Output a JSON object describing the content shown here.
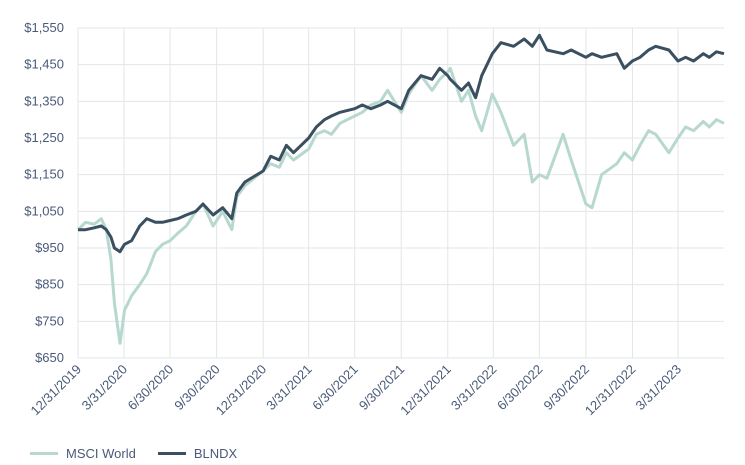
{
  "chart_data": {
    "type": "line",
    "title": "",
    "xlabel": "",
    "ylabel": "",
    "ylim": [
      650,
      1550
    ],
    "y_ticks": [
      "$650",
      "$750",
      "$850",
      "$950",
      "$1,050",
      "$1,150",
      "$1,250",
      "$1,350",
      "$1,450",
      "$1,550"
    ],
    "x_ticks": [
      "12/31/2019",
      "3/31/2020",
      "6/30/2020",
      "9/30/2020",
      "12/31/2020",
      "3/31/2021",
      "6/30/2021",
      "9/30/2021",
      "12/31/2021",
      "3/31/2022",
      "6/30/2022",
      "9/30/2022",
      "12/31/2022",
      "3/31/2023"
    ],
    "grid": true,
    "legend_position": "bottom-left",
    "series": [
      {
        "name": "MSCI World",
        "color": "#b7d8ce",
        "points": [
          [
            "2019-12-31",
            1000
          ],
          [
            "2020-01-15",
            1020
          ],
          [
            "2020-02-01",
            1015
          ],
          [
            "2020-02-15",
            1030
          ],
          [
            "2020-02-25",
            1000
          ],
          [
            "2020-03-05",
            920
          ],
          [
            "2020-03-12",
            800
          ],
          [
            "2020-03-23",
            690
          ],
          [
            "2020-04-01",
            780
          ],
          [
            "2020-04-15",
            820
          ],
          [
            "2020-05-01",
            850
          ],
          [
            "2020-05-15",
            880
          ],
          [
            "2020-06-01",
            940
          ],
          [
            "2020-06-15",
            960
          ],
          [
            "2020-06-30",
            970
          ],
          [
            "2020-07-15",
            990
          ],
          [
            "2020-08-01",
            1010
          ],
          [
            "2020-08-20",
            1050
          ],
          [
            "2020-09-03",
            1070
          ],
          [
            "2020-09-23",
            1010
          ],
          [
            "2020-10-12",
            1050
          ],
          [
            "2020-10-30",
            1000
          ],
          [
            "2020-11-09",
            1090
          ],
          [
            "2020-11-25",
            1120
          ],
          [
            "2020-12-31",
            1160
          ],
          [
            "2021-01-15",
            1180
          ],
          [
            "2021-02-01",
            1170
          ],
          [
            "2021-02-15",
            1210
          ],
          [
            "2021-03-01",
            1190
          ],
          [
            "2021-03-31",
            1220
          ],
          [
            "2021-04-15",
            1260
          ],
          [
            "2021-05-01",
            1270
          ],
          [
            "2021-05-15",
            1260
          ],
          [
            "2021-06-01",
            1290
          ],
          [
            "2021-06-30",
            1310
          ],
          [
            "2021-07-15",
            1320
          ],
          [
            "2021-08-01",
            1340
          ],
          [
            "2021-08-20",
            1350
          ],
          [
            "2021-09-03",
            1380
          ],
          [
            "2021-09-30",
            1320
          ],
          [
            "2021-10-15",
            1370
          ],
          [
            "2021-11-08",
            1420
          ],
          [
            "2021-11-30",
            1380
          ],
          [
            "2021-12-15",
            1410
          ],
          [
            "2021-12-31",
            1430
          ],
          [
            "2022-01-05",
            1440
          ],
          [
            "2022-01-27",
            1350
          ],
          [
            "2022-02-10",
            1380
          ],
          [
            "2022-02-24",
            1310
          ],
          [
            "2022-03-08",
            1270
          ],
          [
            "2022-03-29",
            1370
          ],
          [
            "2022-04-15",
            1320
          ],
          [
            "2022-05-10",
            1230
          ],
          [
            "2022-05-31",
            1260
          ],
          [
            "2022-06-16",
            1130
          ],
          [
            "2022-06-30",
            1150
          ],
          [
            "2022-07-15",
            1140
          ],
          [
            "2022-08-16",
            1260
          ],
          [
            "2022-09-01",
            1190
          ],
          [
            "2022-09-30",
            1070
          ],
          [
            "2022-10-12",
            1060
          ],
          [
            "2022-10-31",
            1150
          ],
          [
            "2022-11-30",
            1180
          ],
          [
            "2022-12-15",
            1210
          ],
          [
            "2022-12-31",
            1190
          ],
          [
            "2023-01-15",
            1230
          ],
          [
            "2023-02-01",
            1270
          ],
          [
            "2023-02-15",
            1260
          ],
          [
            "2023-03-13",
            1210
          ],
          [
            "2023-03-31",
            1250
          ],
          [
            "2023-04-15",
            1280
          ],
          [
            "2023-05-01",
            1270
          ],
          [
            "2023-05-20",
            1295
          ],
          [
            "2023-06-01",
            1280
          ],
          [
            "2023-06-15",
            1300
          ],
          [
            "2023-06-30",
            1290
          ]
        ]
      },
      {
        "name": "BLNDX",
        "color": "#3a4f60",
        "points": [
          [
            "2019-12-31",
            1000
          ],
          [
            "2020-01-15",
            1000
          ],
          [
            "2020-02-01",
            1005
          ],
          [
            "2020-02-15",
            1010
          ],
          [
            "2020-02-25",
            1000
          ],
          [
            "2020-03-05",
            980
          ],
          [
            "2020-03-12",
            950
          ],
          [
            "2020-03-23",
            940
          ],
          [
            "2020-04-01",
            960
          ],
          [
            "2020-04-15",
            970
          ],
          [
            "2020-05-01",
            1010
          ],
          [
            "2020-05-15",
            1030
          ],
          [
            "2020-06-01",
            1020
          ],
          [
            "2020-06-15",
            1020
          ],
          [
            "2020-06-30",
            1025
          ],
          [
            "2020-07-15",
            1030
          ],
          [
            "2020-08-01",
            1040
          ],
          [
            "2020-08-20",
            1050
          ],
          [
            "2020-09-03",
            1070
          ],
          [
            "2020-09-23",
            1040
          ],
          [
            "2020-10-12",
            1060
          ],
          [
            "2020-10-30",
            1030
          ],
          [
            "2020-11-09",
            1100
          ],
          [
            "2020-11-25",
            1130
          ],
          [
            "2020-12-31",
            1160
          ],
          [
            "2021-01-15",
            1200
          ],
          [
            "2021-02-01",
            1190
          ],
          [
            "2021-02-15",
            1230
          ],
          [
            "2021-03-01",
            1210
          ],
          [
            "2021-03-31",
            1250
          ],
          [
            "2021-04-15",
            1280
          ],
          [
            "2021-05-01",
            1300
          ],
          [
            "2021-05-15",
            1310
          ],
          [
            "2021-06-01",
            1320
          ],
          [
            "2021-06-30",
            1330
          ],
          [
            "2021-07-15",
            1340
          ],
          [
            "2021-08-01",
            1330
          ],
          [
            "2021-08-20",
            1340
          ],
          [
            "2021-09-03",
            1350
          ],
          [
            "2021-09-30",
            1330
          ],
          [
            "2021-10-15",
            1380
          ],
          [
            "2021-11-08",
            1420
          ],
          [
            "2021-11-30",
            1410
          ],
          [
            "2021-12-15",
            1440
          ],
          [
            "2021-12-31",
            1420
          ],
          [
            "2022-01-05",
            1410
          ],
          [
            "2022-01-27",
            1380
          ],
          [
            "2022-02-10",
            1400
          ],
          [
            "2022-02-24",
            1360
          ],
          [
            "2022-03-08",
            1420
          ],
          [
            "2022-03-29",
            1480
          ],
          [
            "2022-04-15",
            1510
          ],
          [
            "2022-05-10",
            1500
          ],
          [
            "2022-05-31",
            1520
          ],
          [
            "2022-06-16",
            1500
          ],
          [
            "2022-06-30",
            1530
          ],
          [
            "2022-07-15",
            1490
          ],
          [
            "2022-08-16",
            1480
          ],
          [
            "2022-09-01",
            1490
          ],
          [
            "2022-09-30",
            1470
          ],
          [
            "2022-10-12",
            1480
          ],
          [
            "2022-10-31",
            1470
          ],
          [
            "2022-11-30",
            1480
          ],
          [
            "2022-12-15",
            1440
          ],
          [
            "2022-12-31",
            1460
          ],
          [
            "2023-01-15",
            1470
          ],
          [
            "2023-02-01",
            1490
          ],
          [
            "2023-02-15",
            1500
          ],
          [
            "2023-03-13",
            1490
          ],
          [
            "2023-03-31",
            1460
          ],
          [
            "2023-04-15",
            1470
          ],
          [
            "2023-05-01",
            1460
          ],
          [
            "2023-05-20",
            1480
          ],
          [
            "2023-06-01",
            1470
          ],
          [
            "2023-06-15",
            1485
          ],
          [
            "2023-06-30",
            1480
          ]
        ]
      }
    ]
  }
}
